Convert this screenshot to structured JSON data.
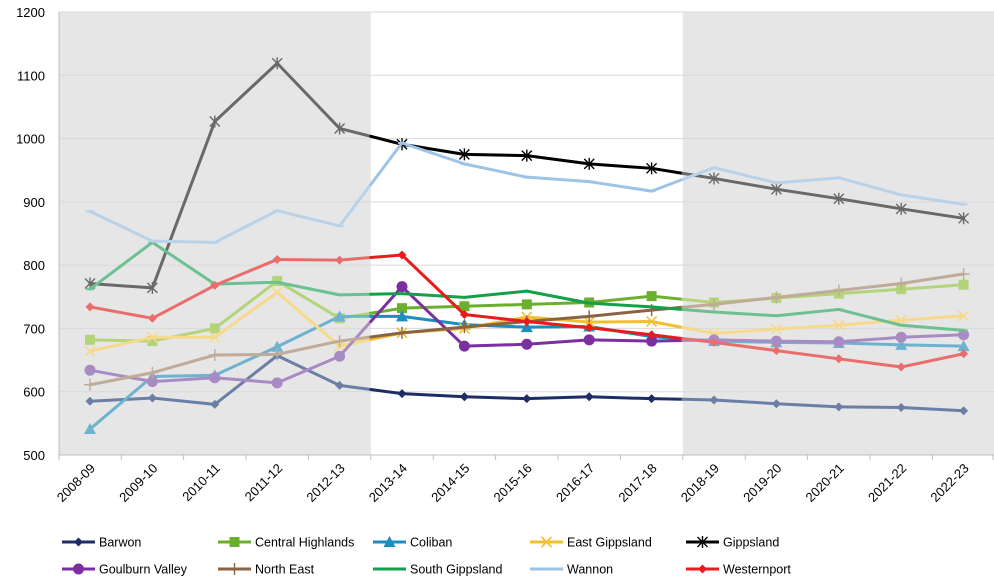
{
  "chart_data": {
    "type": "line",
    "title": "",
    "xlabel": "",
    "ylabel": "",
    "ylim": [
      500,
      1200
    ],
    "yticks": [
      500,
      600,
      700,
      800,
      900,
      1000,
      1100,
      1200
    ],
    "grid": "horizontal",
    "legend_position": "bottom",
    "shaded_periods": [
      {
        "from": "2008-09",
        "to": "2012-13",
        "color": "#e6e6e6"
      },
      {
        "from": "2018-19",
        "to": "2022-23",
        "color": "#e6e6e6"
      }
    ],
    "categories": [
      "2008-09",
      "2009-10",
      "2010-11",
      "2011-12",
      "2012-13",
      "2013-14",
      "2014-15",
      "2015-16",
      "2016-17",
      "2017-18",
      "2018-19",
      "2019-20",
      "2020-21",
      "2021-22",
      "2022-23"
    ],
    "series": [
      {
        "name": "Barwon",
        "marker": "diamond",
        "color_shaded": "#6b7fa6",
        "color_main": "#1f2d66",
        "values": [
          585,
          590,
          580,
          657,
          610,
          597,
          592,
          589,
          592,
          589,
          587,
          581,
          576,
          575,
          570
        ]
      },
      {
        "name": "Central Highlands",
        "marker": "square",
        "color_shaded": "#b3d47a",
        "color_main": "#6cae2e",
        "values": [
          682,
          680,
          700,
          775,
          716,
          732,
          735,
          738,
          741,
          751,
          741,
          748,
          755,
          762,
          769
        ]
      },
      {
        "name": "Coliban",
        "marker": "triangle",
        "color_shaded": "#6fb2cf",
        "color_main": "#1a8fbf",
        "values": [
          541,
          624,
          626,
          671,
          719,
          719,
          706,
          702,
          703,
          687,
          680,
          678,
          677,
          674,
          672
        ]
      },
      {
        "name": "East Gippsland",
        "marker": "x",
        "color_shaded": "#f6d98a",
        "color_main": "#f0c030",
        "values": [
          664,
          686,
          686,
          757,
          672,
          693,
          700,
          718,
          710,
          711,
          692,
          699,
          705,
          713,
          720
        ]
      },
      {
        "name": "Gippsland",
        "marker": "star",
        "color_shaded": "#696969",
        "color_main": "#000000",
        "values": [
          771,
          764,
          1027,
          1119,
          1016,
          991,
          975,
          973,
          960,
          953,
          937,
          920,
          905,
          889,
          874
        ]
      },
      {
        "name": "Goulburn Valley",
        "marker": "circle",
        "color_shaded": "#a98bc4",
        "color_main": "#7b2fa0",
        "values": [
          634,
          616,
          622,
          614,
          656,
          766,
          672,
          675,
          682,
          680,
          682,
          680,
          679,
          686,
          690
        ]
      },
      {
        "name": "North East",
        "marker": "plus",
        "color_shaded": "#c0aa98",
        "color_main": "#8b6343",
        "values": [
          611,
          630,
          658,
          659,
          680,
          693,
          702,
          711,
          719,
          729,
          738,
          749,
          760,
          771,
          786
        ]
      },
      {
        "name": "South Gippsland",
        "marker": "dash",
        "color_shaded": "#6cc192",
        "color_main": "#14a048",
        "values": [
          762,
          836,
          770,
          773,
          753,
          755,
          749,
          759,
          740,
          734,
          726,
          720,
          730,
          705,
          697
        ]
      },
      {
        "name": "Wannon",
        "marker": "dash",
        "color_shaded": "#b8d2ea",
        "color_main": "#9dc3e6",
        "values": [
          885,
          838,
          836,
          886,
          862,
          993,
          960,
          939,
          932,
          917,
          954,
          930,
          938,
          911,
          896
        ]
      },
      {
        "name": "Westernport",
        "marker": "diamond",
        "color_shaded": "#ea6d6d",
        "color_main": "#e81c1c",
        "values": [
          734,
          716,
          768,
          809,
          808,
          816,
          722,
          711,
          701,
          690,
          678,
          665,
          652,
          639,
          660
        ]
      }
    ]
  }
}
